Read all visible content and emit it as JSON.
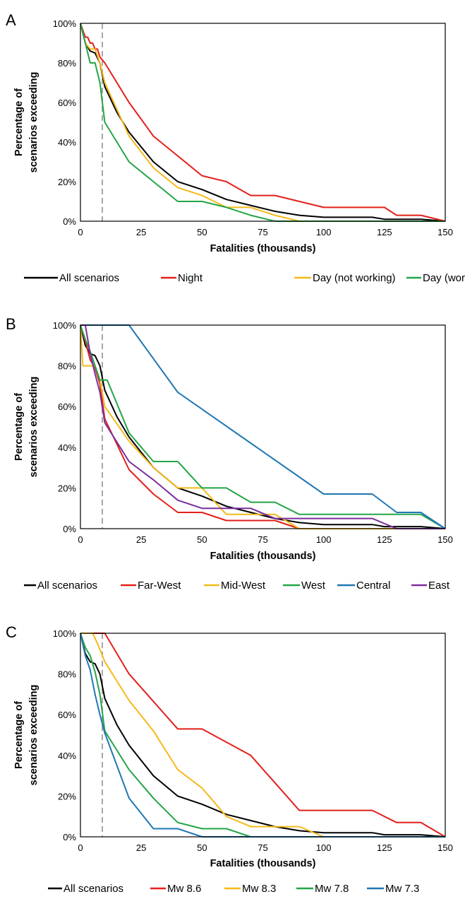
{
  "chart_data": [
    {
      "panel": "A",
      "type": "line",
      "xlabel": "Fatalities (thousands)",
      "ylabel": "Percentage of scenarios exceeding",
      "xlim": [
        0,
        150
      ],
      "ylim": [
        0,
        100
      ],
      "xticks": [
        "0",
        "25",
        "50",
        "75",
        "100",
        "125",
        "150"
      ],
      "yticks": [
        "0%",
        "20%",
        "40%",
        "60%",
        "80%",
        "100%"
      ],
      "reference_line_x": 9,
      "legend_position": "bottom",
      "series": [
        {
          "name": "All scenarios",
          "color": "#000000",
          "x": [
            0,
            2,
            4,
            6,
            8,
            10,
            15,
            20,
            30,
            40,
            50,
            60,
            70,
            80,
            90,
            100,
            110,
            120,
            125,
            130,
            140,
            150
          ],
          "y": [
            100,
            90,
            86,
            85,
            80,
            68,
            55,
            45,
            30,
            20,
            16,
            11,
            8,
            5,
            3,
            2,
            2,
            2,
            1,
            1,
            1,
            0
          ]
        },
        {
          "name": "Night",
          "color": "#e3201b",
          "x": [
            0,
            2,
            3,
            4,
            5,
            6,
            7,
            8,
            10,
            20,
            30,
            40,
            50,
            60,
            70,
            80,
            90,
            100,
            110,
            120,
            125,
            130,
            140,
            150
          ],
          "y": [
            100,
            93,
            93,
            90,
            90,
            87,
            87,
            83,
            80,
            60,
            43,
            33,
            23,
            20,
            13,
            13,
            10,
            7,
            7,
            7,
            7,
            3,
            3,
            0
          ]
        },
        {
          "name": "Day (not working)",
          "color": "#f6b91a",
          "x": [
            0,
            2,
            4,
            6,
            8,
            10,
            20,
            30,
            40,
            50,
            60,
            70,
            80,
            90,
            100,
            150
          ],
          "y": [
            100,
            90,
            87,
            87,
            80,
            70,
            43,
            27,
            17,
            13,
            7,
            7,
            3,
            0,
            0,
            0
          ]
        },
        {
          "name": "Day (working)",
          "color": "#23a548",
          "x": [
            0,
            2,
            4,
            6,
            8,
            10,
            20,
            30,
            40,
            50,
            60,
            70,
            80,
            90,
            100,
            150
          ],
          "y": [
            100,
            90,
            80,
            80,
            70,
            50,
            30,
            20,
            10,
            10,
            7,
            3,
            0,
            0,
            0,
            0
          ]
        }
      ]
    },
    {
      "panel": "B",
      "type": "line",
      "xlabel": "Fatalities (thousands)",
      "ylabel": "Percentage of scenarios exceeding",
      "xlim": [
        0,
        150
      ],
      "ylim": [
        0,
        100
      ],
      "xticks": [
        "0",
        "25",
        "50",
        "75",
        "100",
        "125",
        "150"
      ],
      "yticks": [
        "0%",
        "20%",
        "40%",
        "60%",
        "80%",
        "100%"
      ],
      "reference_line_x": 9,
      "legend_position": "bottom",
      "series": [
        {
          "name": "All scenarios",
          "color": "#000000",
          "x": [
            0,
            2,
            4,
            6,
            8,
            10,
            15,
            20,
            30,
            40,
            50,
            60,
            70,
            80,
            90,
            100,
            110,
            120,
            125,
            130,
            140,
            150
          ],
          "y": [
            100,
            90,
            86,
            85,
            80,
            68,
            55,
            45,
            30,
            20,
            16,
            11,
            8,
            5,
            3,
            2,
            2,
            2,
            1,
            1,
            1,
            0
          ]
        },
        {
          "name": "Far-West",
          "color": "#e3201b",
          "x": [
            0,
            2,
            4,
            6,
            8,
            10,
            20,
            30,
            40,
            50,
            60,
            70,
            80,
            90,
            100,
            150
          ],
          "y": [
            100,
            92,
            83,
            79,
            71,
            54,
            29,
            17,
            8,
            8,
            4,
            4,
            4,
            0,
            0,
            0
          ]
        },
        {
          "name": "Mid-West",
          "color": "#f6b91a",
          "x": [
            0,
            1,
            5,
            6,
            8,
            10,
            20,
            30,
            40,
            50,
            60,
            70,
            80,
            90,
            100,
            130,
            150
          ],
          "y": [
            100,
            80,
            80,
            80,
            73,
            60,
            43,
            30,
            20,
            20,
            7,
            7,
            7,
            0,
            0,
            0,
            0
          ]
        },
        {
          "name": "West",
          "color": "#23a548",
          "x": [
            0,
            2,
            4,
            6,
            8,
            9,
            10,
            11,
            20,
            30,
            40,
            50,
            60,
            70,
            80,
            90,
            100,
            140,
            150
          ],
          "y": [
            100,
            93,
            87,
            80,
            73,
            73,
            73,
            73,
            47,
            33,
            33,
            20,
            20,
            13,
            13,
            7,
            7,
            7,
            0
          ]
        },
        {
          "name": "Central",
          "color": "#1f77b4",
          "x": [
            0,
            20,
            40,
            70,
            100,
            120,
            130,
            140,
            150
          ],
          "y": [
            100,
            100,
            67,
            42,
            17,
            17,
            8,
            8,
            0
          ]
        },
        {
          "name": "East",
          "color": "#7b2f9d",
          "x": [
            0,
            2,
            4,
            6,
            8,
            10,
            20,
            30,
            40,
            50,
            60,
            70,
            80,
            90,
            100,
            120,
            130,
            150
          ],
          "y": [
            100,
            100,
            86,
            76,
            67,
            52,
            33,
            24,
            14,
            10,
            10,
            10,
            5,
            5,
            5,
            5,
            0,
            0
          ]
        }
      ]
    },
    {
      "panel": "C",
      "type": "line",
      "xlabel": "Fatalities (thousands)",
      "ylabel": "Percentage of scenarios exceeding",
      "xlim": [
        0,
        150
      ],
      "ylim": [
        0,
        100
      ],
      "xticks": [
        "0",
        "25",
        "50",
        "75",
        "100",
        "125",
        "150"
      ],
      "yticks": [
        "0%",
        "20%",
        "40%",
        "60%",
        "80%",
        "100%"
      ],
      "reference_line_x": 9,
      "legend_position": "bottom",
      "series": [
        {
          "name": "All scenarios",
          "color": "#000000",
          "x": [
            0,
            2,
            4,
            6,
            8,
            10,
            15,
            20,
            30,
            40,
            50,
            60,
            70,
            80,
            90,
            100,
            110,
            120,
            125,
            130,
            140,
            150
          ],
          "y": [
            100,
            90,
            86,
            85,
            80,
            68,
            55,
            45,
            30,
            20,
            16,
            11,
            8,
            5,
            3,
            2,
            2,
            2,
            1,
            1,
            1,
            0
          ]
        },
        {
          "name": "Mw 8.6",
          "color": "#e3201b",
          "x": [
            0,
            10,
            20,
            40,
            50,
            70,
            90,
            100,
            120,
            130,
            140,
            150
          ],
          "y": [
            100,
            100,
            80,
            53,
            53,
            40,
            13,
            13,
            13,
            7,
            7,
            0
          ]
        },
        {
          "name": "Mw 8.3",
          "color": "#f6b91a",
          "x": [
            0,
            5,
            7,
            10,
            20,
            30,
            40,
            50,
            60,
            70,
            90,
            100,
            150
          ],
          "y": [
            100,
            100,
            95,
            86,
            67,
            52,
            33,
            24,
            10,
            5,
            5,
            0,
            0
          ]
        },
        {
          "name": "Mw 7.8",
          "color": "#23a548",
          "x": [
            0,
            2,
            4,
            6,
            8,
            10,
            20,
            30,
            40,
            50,
            60,
            70,
            150
          ],
          "y": [
            100,
            93,
            89,
            81,
            70,
            52,
            33,
            19,
            7,
            4,
            4,
            0,
            0
          ]
        },
        {
          "name": "Mw 7.3",
          "color": "#1f77b4",
          "x": [
            0,
            2,
            4,
            6,
            8,
            10,
            20,
            30,
            40,
            50,
            150
          ],
          "y": [
            100,
            89,
            82,
            70,
            60,
            51,
            19,
            4,
            4,
            0,
            0
          ]
        }
      ]
    }
  ]
}
